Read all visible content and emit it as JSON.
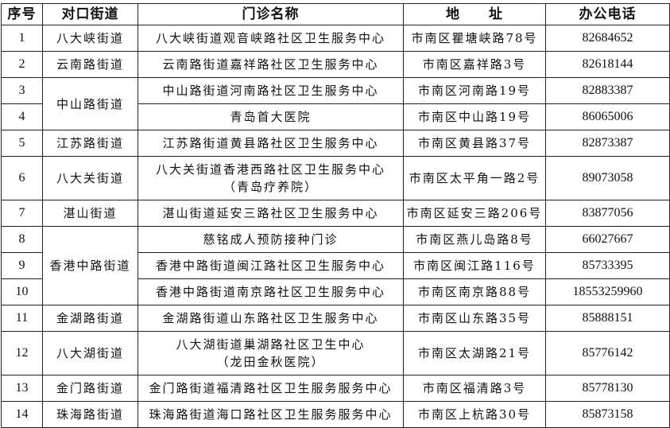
{
  "headers": {
    "index": "序号",
    "street": "对口街道",
    "clinic": "门诊名称",
    "address": "地　　址",
    "phone": "办公电话"
  },
  "rows": [
    {
      "index": "1",
      "street": "八大峡街道",
      "clinic": "八大峡街道观音峡路社区卫生服务中心",
      "clinic2": "",
      "address": "市南区瞿塘峡路78号",
      "phone": "82684652"
    },
    {
      "index": "2",
      "street": "云南路街道",
      "clinic": "云南路街道嘉祥路社区卫生服务中心",
      "clinic2": "",
      "address": "市南区嘉祥路3号",
      "phone": "82618144"
    },
    {
      "index": "3",
      "street": "中山路街道",
      "clinic": "中山路街道河南路社区卫生服务中心",
      "clinic2": "",
      "address": "市南区河南路19号",
      "phone": "82883387"
    },
    {
      "index": "4",
      "street": "",
      "clinic": "青岛首大医院",
      "clinic2": "",
      "address": "市南区中山路19号",
      "phone": "86065006"
    },
    {
      "index": "5",
      "street": "江苏路街道",
      "clinic": "江苏路街道黄县路社区卫生服务中心",
      "clinic2": "",
      "address": "市南区黄县路37号",
      "phone": "82873387"
    },
    {
      "index": "6",
      "street": "八大关街道",
      "clinic": "八大关街道香港西路社区卫生服务中心",
      "clinic2": "（青岛疗养院）",
      "address": "市南区太平角一路2号",
      "phone": "89073058"
    },
    {
      "index": "7",
      "street": "湛山街道",
      "clinic": "湛山街道延安三路社区卫生服务中心",
      "clinic2": "",
      "address": "市南区延安三路206号",
      "phone": "83877056"
    },
    {
      "index": "8",
      "street": "香港中路街道",
      "clinic": "慈铭成人预防接种门诊",
      "clinic2": "",
      "address": "市南区燕儿岛路8号",
      "phone": "66027667"
    },
    {
      "index": "9",
      "street": "",
      "clinic": "香港中路街道闽江路社区卫生服务中心",
      "clinic2": "",
      "address": "市南区闽江路116号",
      "phone": "85733395"
    },
    {
      "index": "10",
      "street": "",
      "clinic": "香港中路街道南京路社区卫生服务中心",
      "clinic2": "",
      "address": "市南区南京路88号",
      "phone": "18553259960"
    },
    {
      "index": "11",
      "street": "金湖路街道",
      "clinic": "金湖路街道山东路社区卫生服务中心",
      "clinic2": "",
      "address": "市南区山东路35号",
      "phone": "85888151"
    },
    {
      "index": "12",
      "street": "八大湖街道",
      "clinic": "八大湖街道巢湖路社区卫生中心",
      "clinic2": "（龙田金秋医院）",
      "address": "市南区太湖路21号",
      "phone": "85776142"
    },
    {
      "index": "13",
      "street": "金门路街道",
      "clinic": "金门路街道福清路社区卫生服务服务中心",
      "clinic2": "",
      "address": "市南区福清路3号",
      "phone": "85778130"
    },
    {
      "index": "14",
      "street": "珠海路街道",
      "clinic": "珠海路街道海口路社区卫生服务服务中心",
      "clinic2": "",
      "address": "市南区上杭路30号",
      "phone": "85873158"
    }
  ]
}
